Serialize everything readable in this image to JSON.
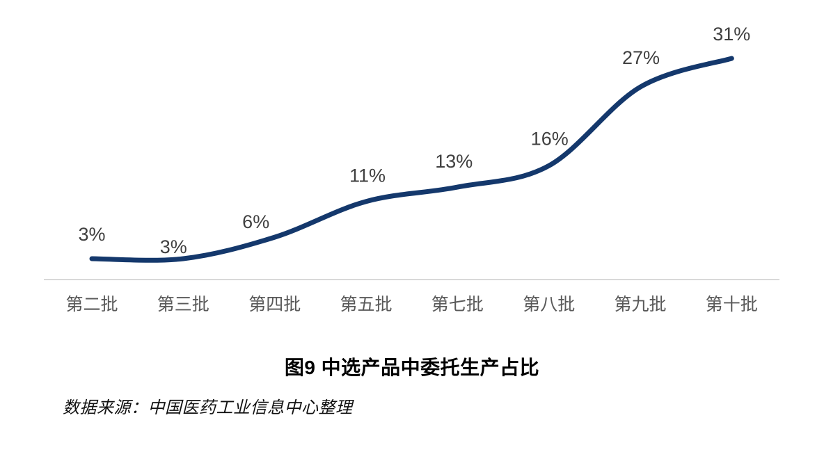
{
  "page": {
    "background": "#ffffff"
  },
  "chart_data": {
    "type": "line",
    "title": "图9 中选产品中委托生产占比",
    "source_note": "数据来源：中国医药工业信息中心整理",
    "categories": [
      "第二批",
      "第三批",
      "第四批",
      "第五批",
      "第七批",
      "第八批",
      "第九批",
      "第十批"
    ],
    "values": [
      3,
      3,
      6,
      11,
      13,
      16,
      27,
      31
    ],
    "data_labels": [
      "3%",
      "3%",
      "6%",
      "11%",
      "13%",
      "16%",
      "27%",
      "31%"
    ],
    "unit": "%",
    "ylim": [
      0,
      35
    ],
    "grid": false,
    "legend": "none",
    "smooth": true,
    "colors": {
      "line": "#14386c",
      "axis_line": "#d9d9d9",
      "data_label": "#404040",
      "category_label": "#595959",
      "title": "#000000",
      "source": "#111111"
    }
  }
}
